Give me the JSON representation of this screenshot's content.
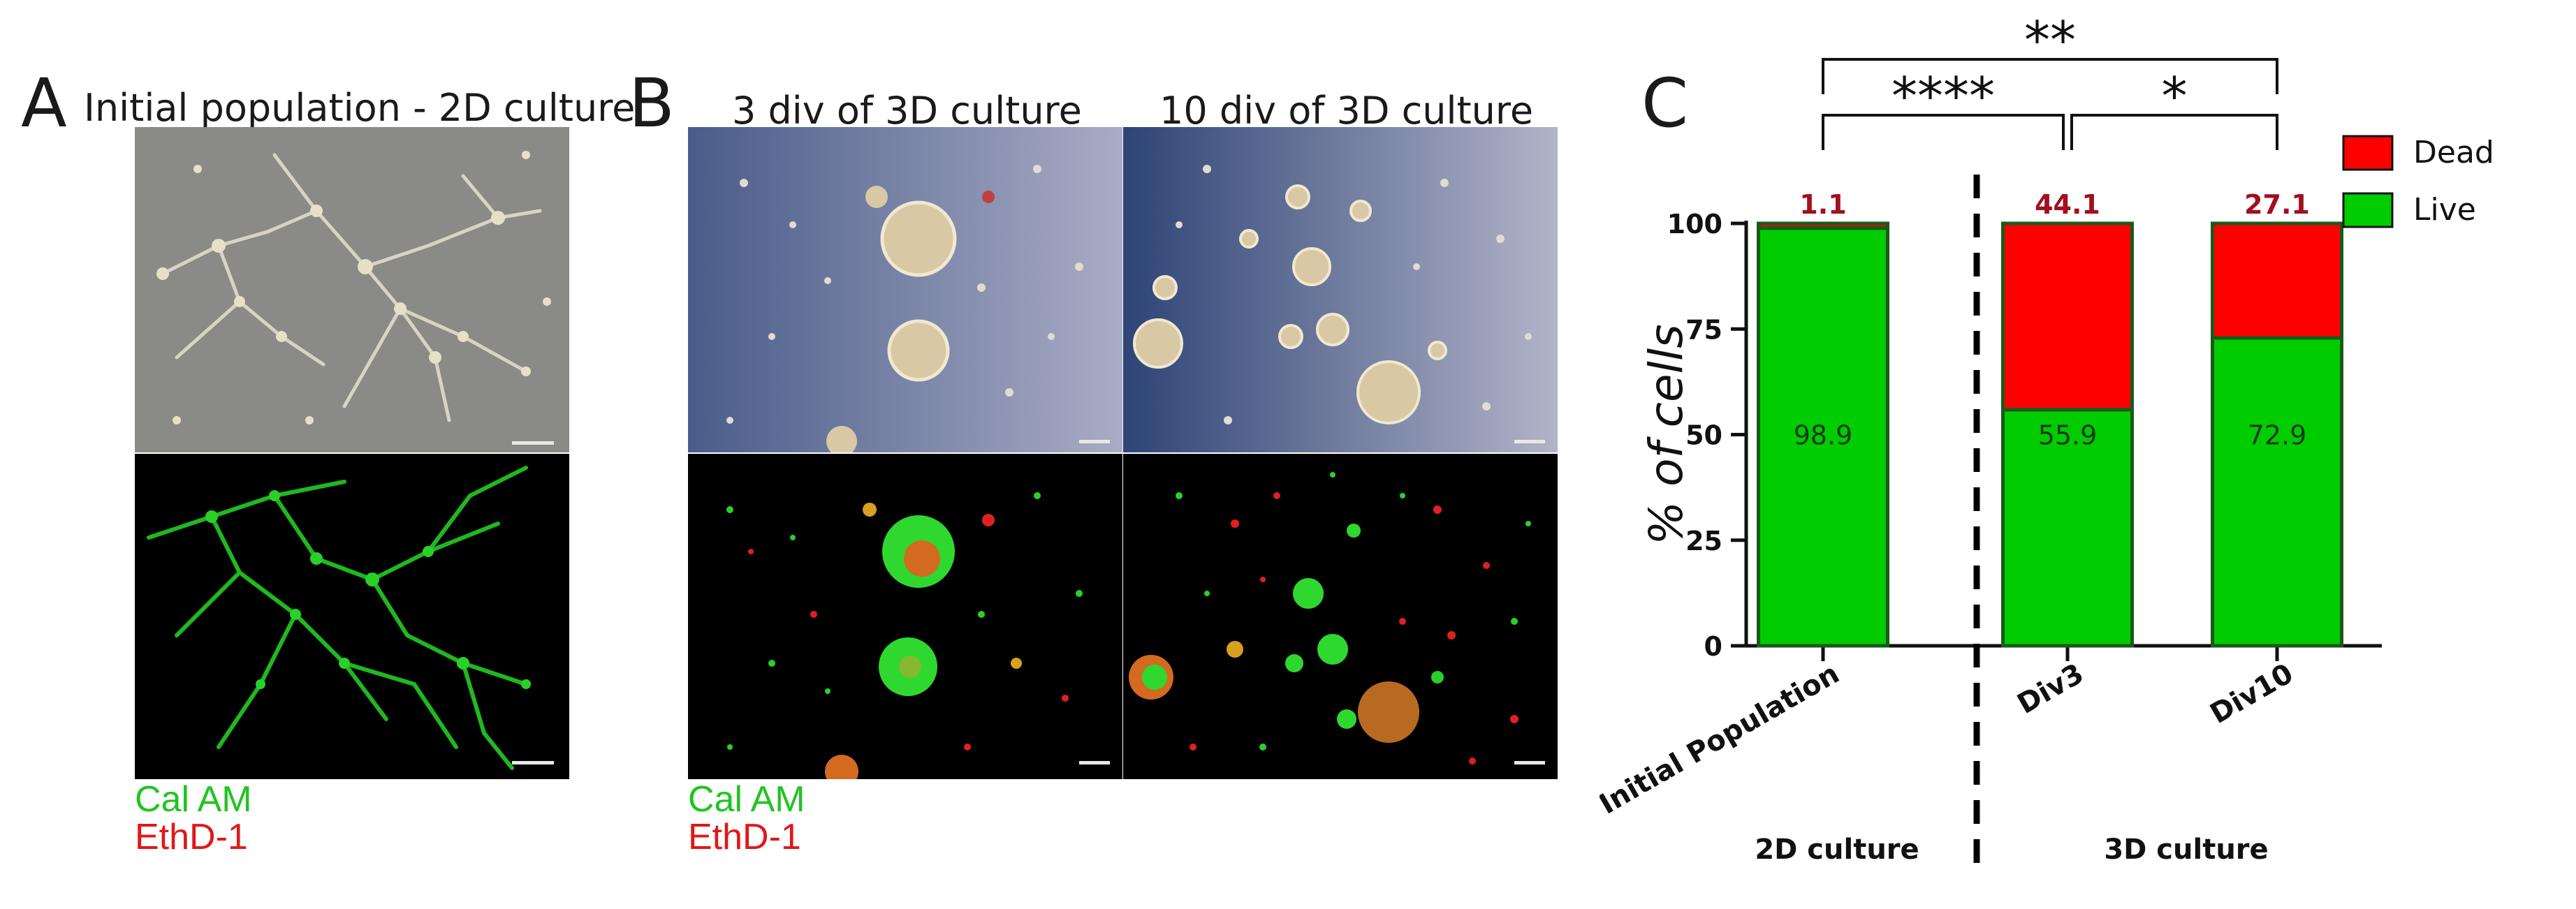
{
  "panels": {
    "a": {
      "letter": "A",
      "title": "Initial population - 2D culture",
      "stain_green": "Cal AM",
      "stain_red": "EthD-1"
    },
    "b": {
      "letter": "B",
      "title_left": "3 div of 3D culture",
      "title_right": "10 div of 3D culture",
      "stain_green": "Cal AM",
      "stain_red": "EthD-1"
    },
    "c": {
      "letter": "C"
    }
  },
  "colors": {
    "dead": "#ff0000",
    "live": "#00cc00",
    "dead_label": "#a01020",
    "stain_green": "#22c422",
    "stain_red": "#e01818"
  },
  "chart_data": {
    "type": "bar",
    "stacked": true,
    "categories": [
      "Initial Population",
      "Div3",
      "Div10"
    ],
    "series": [
      {
        "name": "Live",
        "values": [
          98.9,
          55.9,
          72.9
        ],
        "color": "#00cc00"
      },
      {
        "name": "Dead",
        "values": [
          1.1,
          44.1,
          27.1
        ],
        "color": "#ff0000"
      }
    ],
    "ylabel": "% of cells",
    "ylim": [
      0,
      100
    ],
    "yticks": [
      0,
      25,
      50,
      75,
      100
    ],
    "legend_position": "top-right",
    "group_labels": [
      "2D culture",
      "3D culture"
    ],
    "significance": [
      {
        "between": [
          "Initial Population",
          "Div3"
        ],
        "label": "****"
      },
      {
        "between": [
          "Div3",
          "Div10"
        ],
        "label": "*"
      },
      {
        "between": [
          "Initial Population",
          "Div10"
        ],
        "label": "**"
      }
    ],
    "grid": false
  }
}
